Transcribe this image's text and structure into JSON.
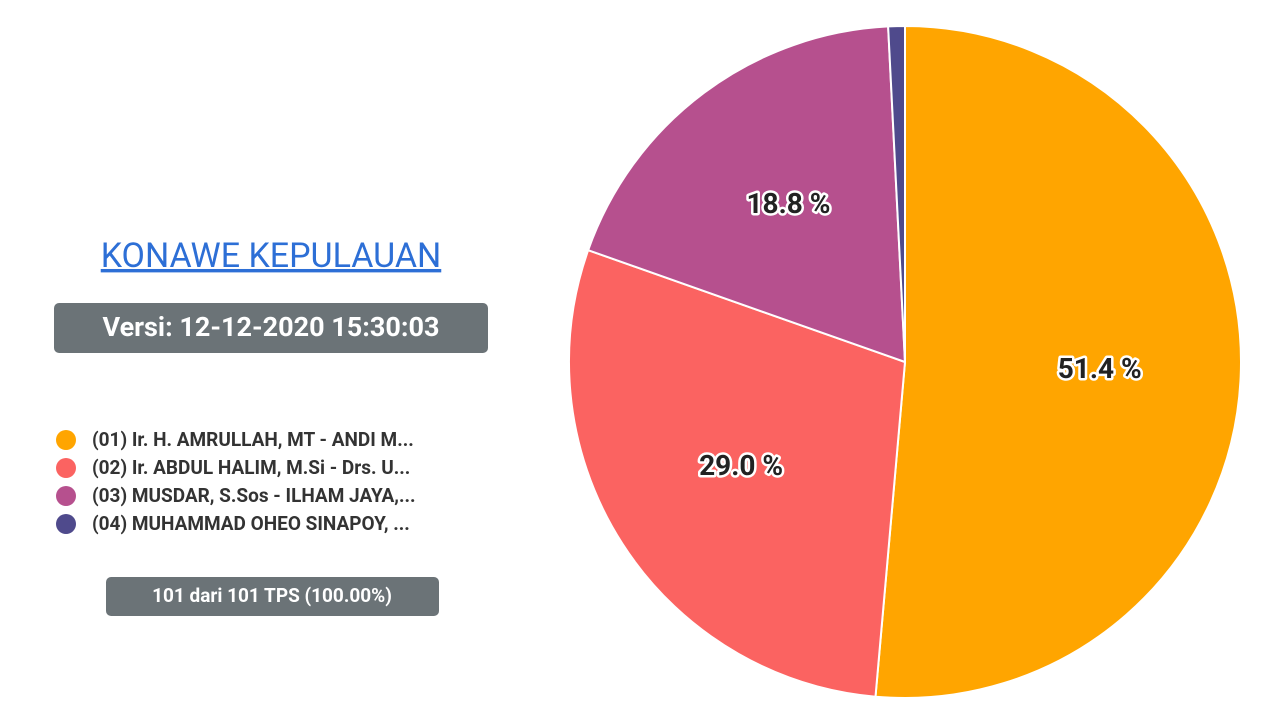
{
  "chart_data": {
    "type": "pie",
    "title": "KONAWE KEPULAUAN",
    "subtitle": "Versi: 12-12-2020 15:30:03",
    "annotation": "101 dari 101 TPS (100.00%)",
    "categories": [
      "(01) Ir. H. AMRULLAH, MT - ANDI M...",
      "(02) Ir. ABDUL HALIM, M.Si - Drs. U...",
      "(03) MUSDAR, S.Sos - ILHAM JAYA,...",
      "(04) MUHAMMAD OHEO SINAPOY, ..."
    ],
    "values": [
      51.4,
      29.0,
      18.8,
      0.8
    ],
    "value_labels": [
      "51.4 %",
      "29.0 %",
      "18.8 %",
      null
    ],
    "colors": [
      "#ffa500",
      "#fb6361",
      "#b6508e",
      "#4f4a8c"
    ],
    "legend": "left"
  }
}
